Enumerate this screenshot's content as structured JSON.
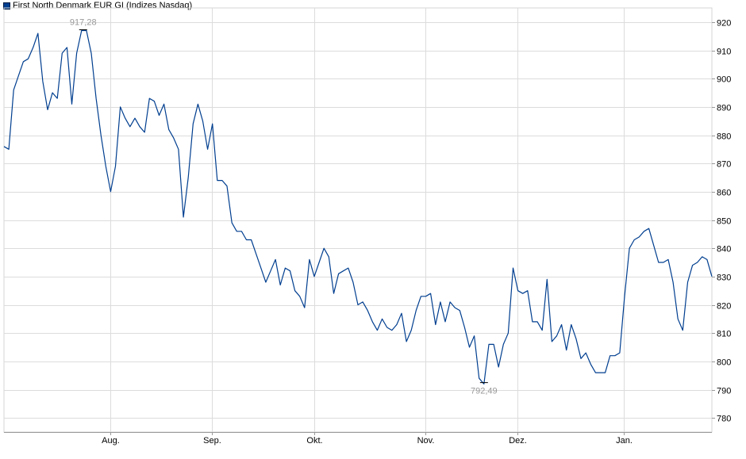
{
  "chart_data": {
    "type": "line",
    "title": "",
    "xlabel": "",
    "ylabel": "",
    "ylim": [
      775,
      925
    ],
    "yticks": [
      780,
      790,
      800,
      810,
      820,
      830,
      840,
      850,
      860,
      870,
      880,
      890,
      900,
      910,
      920
    ],
    "x_tick_labels": [
      "Aug.",
      "Sep.",
      "Okt.",
      "Nov.",
      "Dez.",
      "Jan."
    ],
    "grid": true,
    "legend_position": "top-left",
    "series": [
      {
        "name": "First North Denmark EUR GI (Indizes Nasdaq)",
        "color": "#003e8f",
        "values": [
          876,
          875,
          896,
          901,
          906,
          907,
          911,
          916,
          899,
          889,
          895,
          893,
          909,
          911,
          891,
          909,
          917,
          917,
          909,
          893,
          880,
          869,
          860,
          869,
          890,
          886,
          883,
          886,
          883,
          881,
          893,
          892,
          887,
          891,
          882,
          879,
          875,
          851,
          865,
          884,
          891,
          885,
          875,
          884,
          864,
          864,
          862,
          849,
          846,
          846,
          843,
          843,
          838,
          833,
          828,
          832,
          836,
          827,
          833,
          832,
          825,
          823,
          819,
          836,
          830,
          835,
          840,
          837,
          824,
          831,
          832,
          833,
          828,
          820,
          821,
          818,
          814,
          811,
          815,
          812,
          811,
          813,
          817,
          807,
          811,
          818,
          823,
          823,
          824,
          813,
          821,
          814,
          821,
          819,
          818,
          812,
          805,
          809,
          794,
          792,
          806,
          806,
          798,
          806,
          810,
          833,
          825,
          824,
          825,
          814,
          814,
          811,
          829,
          807,
          809,
          813,
          804,
          813,
          808,
          801,
          803,
          799,
          796,
          796,
          796,
          802,
          802,
          803,
          823,
          840,
          843,
          844,
          846,
          847,
          841,
          835,
          835,
          836,
          828,
          815,
          811,
          828,
          834,
          835,
          837,
          836,
          830
        ]
      }
    ],
    "annotations": [
      {
        "text": "917,28",
        "value": 917.28
      },
      {
        "text": "792,49",
        "value": 792.49
      }
    ]
  }
}
